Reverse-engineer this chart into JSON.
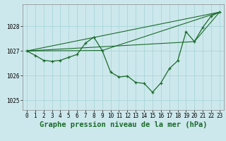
{
  "title": "Graphe pression niveau de la mer (hPa)",
  "background_color": "#cde8ec",
  "grid_color": "#a8d5da",
  "line_color": "#1a6b2a",
  "xlim": [
    -0.5,
    23.5
  ],
  "ylim": [
    1024.6,
    1028.9
  ],
  "yticks": [
    1025,
    1026,
    1027,
    1028
  ],
  "xticks": [
    0,
    1,
    2,
    3,
    4,
    5,
    6,
    7,
    8,
    9,
    10,
    11,
    12,
    13,
    14,
    15,
    16,
    17,
    18,
    19,
    20,
    21,
    22,
    23
  ],
  "main_series": [
    [
      0,
      1027.0
    ],
    [
      1,
      1026.82
    ],
    [
      2,
      1026.62
    ],
    [
      3,
      1026.58
    ],
    [
      4,
      1026.62
    ],
    [
      5,
      1026.74
    ],
    [
      6,
      1026.86
    ],
    [
      7,
      1027.32
    ],
    [
      8,
      1027.56
    ],
    [
      9,
      1027.02
    ],
    [
      10,
      1026.14
    ],
    [
      11,
      1025.94
    ],
    [
      12,
      1025.98
    ],
    [
      13,
      1025.72
    ],
    [
      14,
      1025.68
    ],
    [
      15,
      1025.32
    ],
    [
      16,
      1025.7
    ],
    [
      17,
      1026.28
    ],
    [
      18,
      1026.6
    ],
    [
      19,
      1027.78
    ],
    [
      20,
      1027.38
    ],
    [
      21,
      1027.96
    ],
    [
      22,
      1028.42
    ],
    [
      23,
      1028.58
    ]
  ],
  "line_straight": [
    [
      0,
      1027.0
    ],
    [
      23,
      1028.58
    ]
  ],
  "line_via_20": [
    [
      0,
      1027.0
    ],
    [
      20,
      1027.38
    ],
    [
      23,
      1028.58
    ]
  ],
  "line_via_9": [
    [
      0,
      1027.0
    ],
    [
      9,
      1027.02
    ],
    [
      23,
      1028.58
    ]
  ],
  "title_fontsize": 7.5,
  "tick_fontsize": 5.5
}
